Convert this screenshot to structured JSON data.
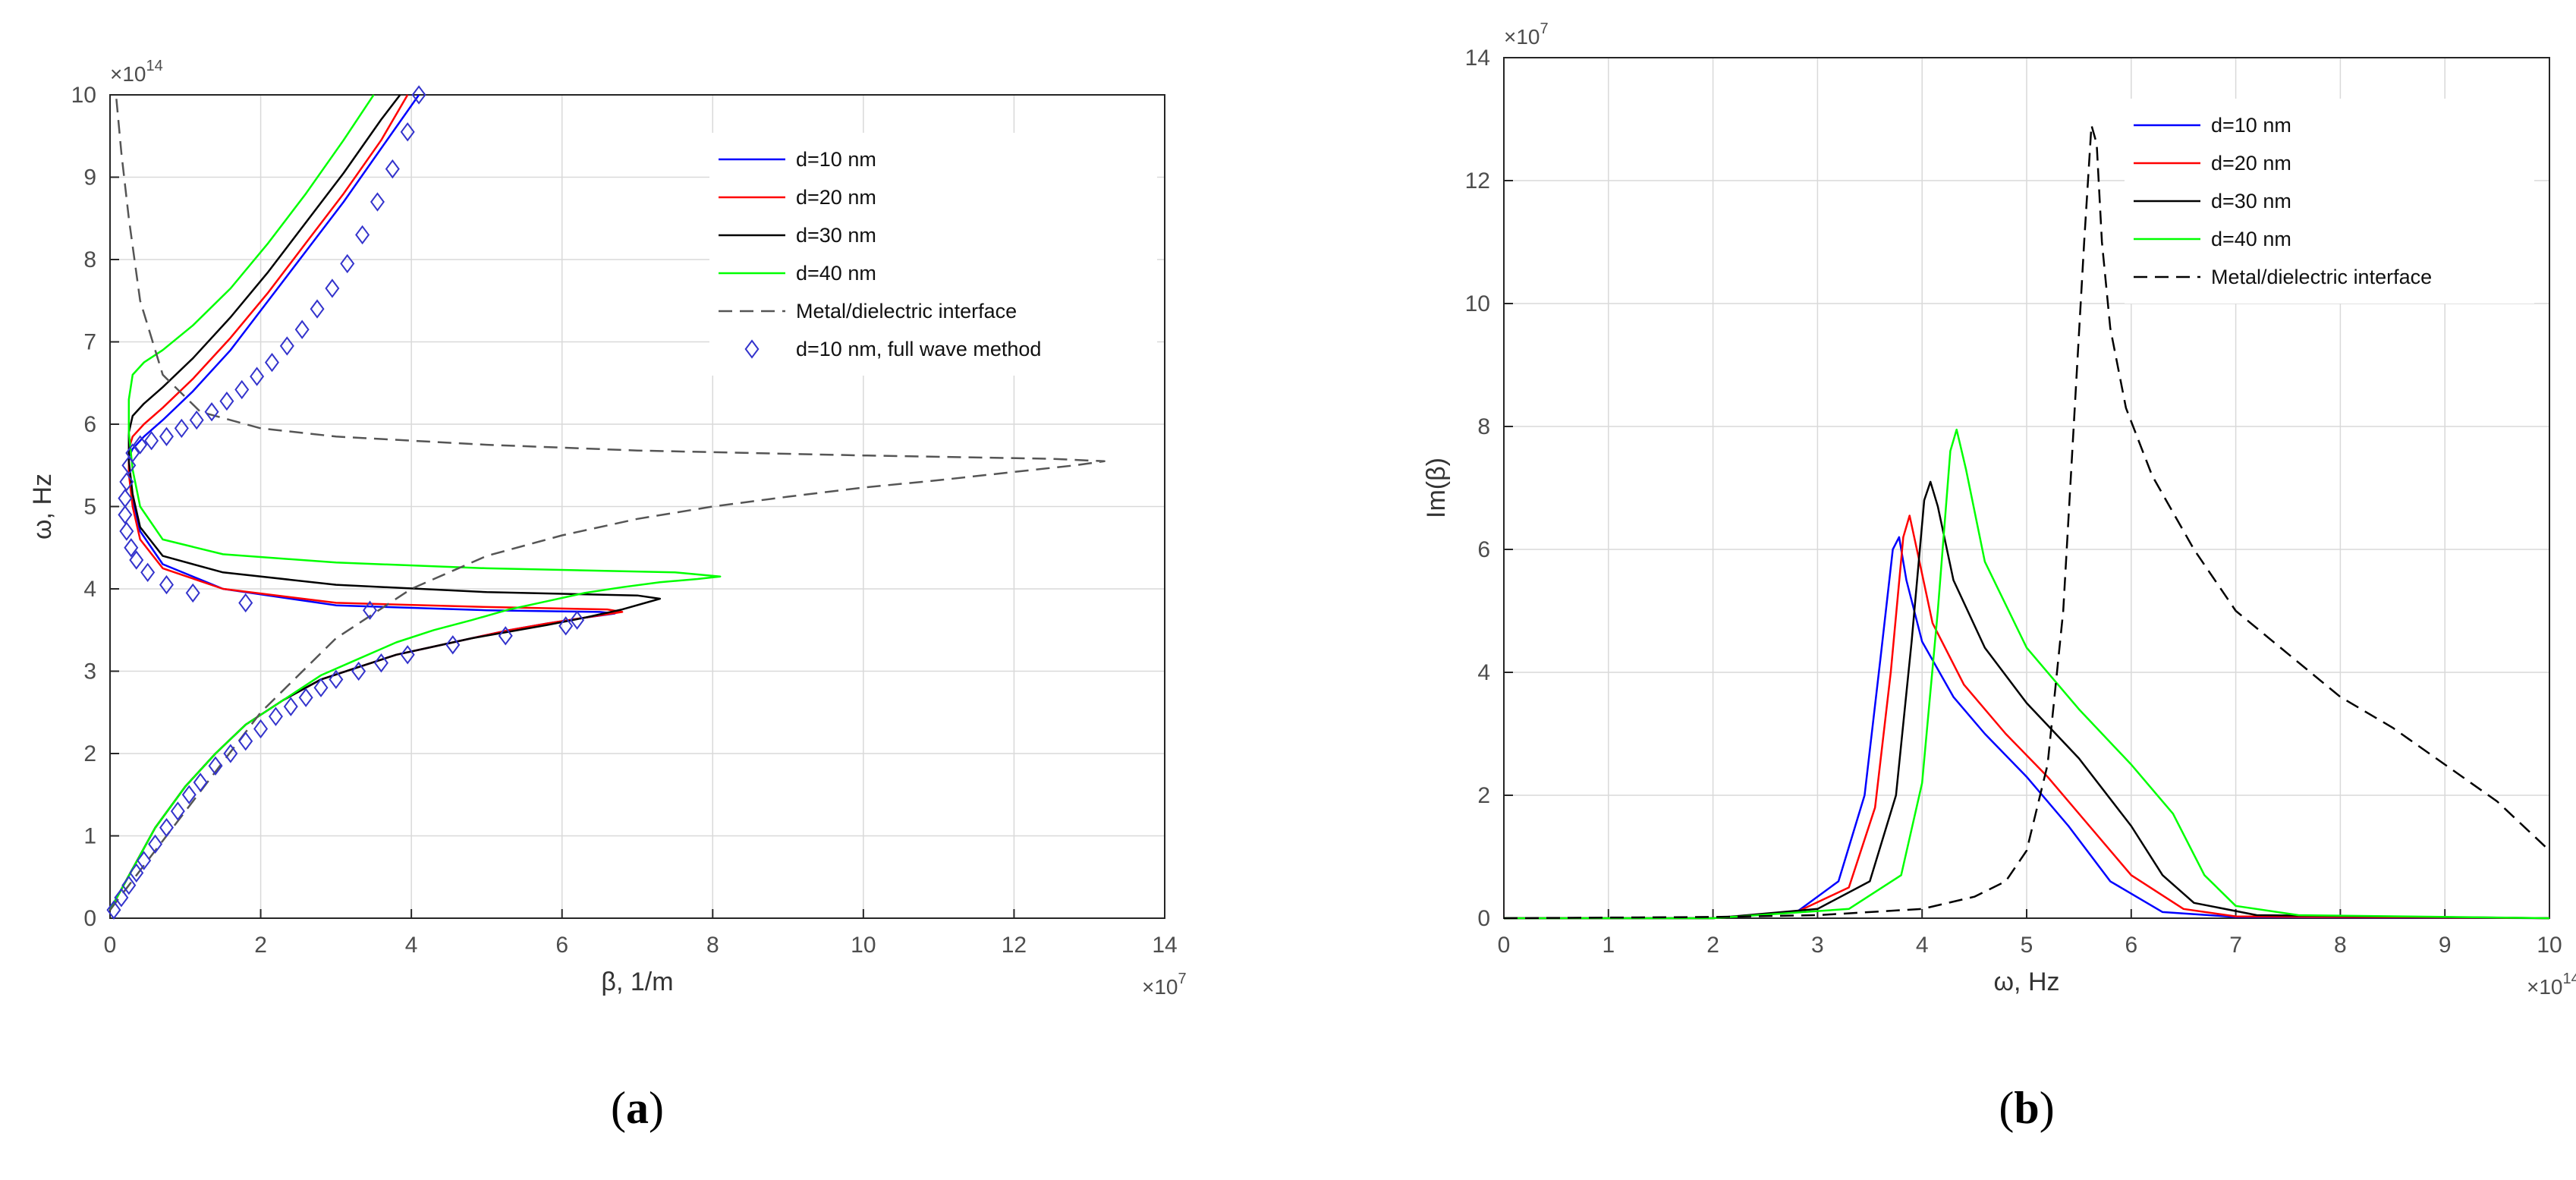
{
  "panels": [
    {
      "id": "a",
      "panel_label_open": "(",
      "panel_label_letter": "a",
      "panel_label_close": ")",
      "x_multiplier": "×10",
      "x_multiplier_exp": "7",
      "y_multiplier": "×10",
      "y_multiplier_exp": "14"
    },
    {
      "id": "b",
      "panel_label_open": "(",
      "panel_label_letter": "b",
      "panel_label_close": ")",
      "x_multiplier": "×10",
      "x_multiplier_exp": "14",
      "y_multiplier": "×10",
      "y_multiplier_exp": "7"
    }
  ],
  "chart_data": [
    {
      "type": "line",
      "xlabel": "β, 1/m",
      "ylabel": "ω, Hz",
      "xlim": [
        0,
        14
      ],
      "ylim": [
        0,
        10
      ],
      "xticks": [
        0,
        2,
        4,
        6,
        8,
        10,
        12,
        14
      ],
      "yticks": [
        0,
        1,
        2,
        3,
        4,
        5,
        6,
        7,
        8,
        9,
        10
      ],
      "grid": true,
      "legend_position": "top-right",
      "colors": {
        "d10": "#0000ff",
        "d20": "#ff0000",
        "d30": "#000000",
        "d40": "#00ff00",
        "interface": "#555555",
        "fullwave": "#3333cc"
      },
      "series": [
        {
          "name": "d=10 nm",
          "color": "#0000ff",
          "style": "solid",
          "x": [
            0,
            0.3,
            0.6,
            1,
            1.4,
            1.8,
            2.3,
            2.8,
            3.3,
            3.8,
            4.3,
            4.8,
            5.3,
            5.8,
            6.3,
            6.7,
            6.5,
            5,
            3,
            1.5,
            0.7,
            0.4,
            0.3,
            0.25,
            0.25,
            0.3,
            0.45,
            0.7,
            1.1,
            1.6,
            2.1,
            2.6,
            3.1,
            3.6,
            4.1
          ],
          "y": [
            0.1,
            0.6,
            1.1,
            1.6,
            2.0,
            2.35,
            2.65,
            2.9,
            3.05,
            3.2,
            3.3,
            3.4,
            3.5,
            3.58,
            3.65,
            3.7,
            3.72,
            3.74,
            3.8,
            4.0,
            4.3,
            4.7,
            5.1,
            5.4,
            5.6,
            5.7,
            5.85,
            6.05,
            6.4,
            6.9,
            7.5,
            8.1,
            8.7,
            9.35,
            10.0
          ]
        },
        {
          "name": "d=20 nm",
          "color": "#ff0000",
          "style": "solid",
          "x": [
            0,
            0.3,
            0.6,
            1,
            1.4,
            1.8,
            2.3,
            2.8,
            3.3,
            3.8,
            4.3,
            4.8,
            5.3,
            5.8,
            6.3,
            6.8,
            6.6,
            5,
            3,
            1.5,
            0.7,
            0.4,
            0.3,
            0.25,
            0.25,
            0.3,
            0.45,
            0.7,
            1.1,
            1.6,
            2.1,
            2.6,
            3.1,
            3.6,
            3.95
          ],
          "y": [
            0.1,
            0.6,
            1.1,
            1.6,
            2.0,
            2.35,
            2.65,
            2.9,
            3.05,
            3.2,
            3.3,
            3.4,
            3.5,
            3.58,
            3.65,
            3.72,
            3.75,
            3.78,
            3.83,
            4.0,
            4.25,
            4.6,
            5.0,
            5.4,
            5.7,
            5.85,
            6.0,
            6.2,
            6.55,
            7.05,
            7.6,
            8.2,
            8.8,
            9.45,
            10.0
          ]
        },
        {
          "name": "d=30 nm",
          "color": "#000000",
          "style": "solid",
          "x": [
            0,
            0.3,
            0.6,
            1,
            1.4,
            1.8,
            2.3,
            2.8,
            3.3,
            3.8,
            4.3,
            4.8,
            5.3,
            5.8,
            6.3,
            6.8,
            7.3,
            7.0,
            5,
            3,
            1.5,
            0.7,
            0.4,
            0.3,
            0.25,
            0.25,
            0.3,
            0.45,
            0.7,
            1.1,
            1.6,
            2.1,
            2.6,
            3.1,
            3.6,
            3.85
          ],
          "y": [
            0.1,
            0.6,
            1.1,
            1.6,
            2.0,
            2.35,
            2.65,
            2.9,
            3.05,
            3.2,
            3.3,
            3.4,
            3.48,
            3.56,
            3.65,
            3.75,
            3.88,
            3.92,
            3.96,
            4.05,
            4.2,
            4.4,
            4.75,
            5.15,
            5.55,
            5.9,
            6.1,
            6.25,
            6.45,
            6.8,
            7.3,
            7.85,
            8.45,
            9.05,
            9.7,
            10.0
          ]
        },
        {
          "name": "d=40 nm",
          "color": "#00ff00",
          "style": "solid",
          "x": [
            0,
            0.3,
            0.6,
            1,
            1.4,
            1.8,
            2.3,
            2.8,
            3.3,
            3.8,
            4.3,
            4.8,
            5.3,
            5.8,
            6.3,
            6.8,
            7.3,
            7.8,
            8.1,
            7.5,
            5,
            3,
            1.5,
            0.7,
            0.4,
            0.3,
            0.25,
            0.25,
            0.3,
            0.45,
            0.7,
            1.1,
            1.6,
            2.1,
            2.6,
            3.1,
            3.5
          ],
          "y": [
            0.1,
            0.6,
            1.1,
            1.6,
            2.0,
            2.35,
            2.65,
            2.95,
            3.15,
            3.35,
            3.5,
            3.62,
            3.75,
            3.85,
            3.95,
            4.02,
            4.08,
            4.12,
            4.15,
            4.2,
            4.25,
            4.32,
            4.42,
            4.6,
            5.0,
            5.45,
            5.9,
            6.3,
            6.6,
            6.75,
            6.9,
            7.2,
            7.65,
            8.2,
            8.8,
            9.45,
            10.0
          ]
        },
        {
          "name": "Metal/dielectric interface",
          "color": "#555555",
          "style": "dashed",
          "x": [
            0,
            0.5,
            1,
            1.5,
            2,
            3,
            4,
            5,
            6,
            7,
            8,
            9,
            10,
            11,
            12,
            12.8,
            13.2,
            12.5,
            10,
            7,
            5,
            3,
            2,
            1.2,
            0.7,
            0.4,
            0.25,
            0.15,
            0.08
          ],
          "y": [
            0.1,
            0.7,
            1.3,
            1.9,
            2.5,
            3.4,
            4.0,
            4.4,
            4.65,
            4.85,
            5.0,
            5.12,
            5.23,
            5.32,
            5.42,
            5.5,
            5.55,
            5.58,
            5.62,
            5.68,
            5.75,
            5.85,
            5.95,
            6.15,
            6.6,
            7.5,
            8.5,
            9.3,
            10.0
          ]
        },
        {
          "name": "d=10 nm, full wave method",
          "color": "#3333cc",
          "style": "marker",
          "x": [
            0.05,
            0.15,
            0.25,
            0.35,
            0.45,
            0.6,
            0.75,
            0.9,
            1.05,
            1.2,
            1.4,
            1.6,
            1.8,
            2.0,
            2.2,
            2.4,
            2.6,
            2.8,
            3.0,
            3.3,
            3.6,
            3.95,
            4.55,
            5.25,
            6.05,
            6.2,
            3.45,
            1.8,
            1.1,
            0.75,
            0.5,
            0.35,
            0.28,
            0.22,
            0.2,
            0.2,
            0.22,
            0.25,
            0.3,
            0.4,
            0.55,
            0.75,
            0.95,
            1.15,
            1.35,
            1.55,
            1.75,
            1.95,
            2.15,
            2.35,
            2.55,
            2.75,
            2.95,
            3.15,
            3.35,
            3.55,
            3.75,
            3.95,
            4.1
          ],
          "y": [
            0.1,
            0.25,
            0.4,
            0.55,
            0.7,
            0.9,
            1.1,
            1.3,
            1.5,
            1.65,
            1.85,
            2.0,
            2.15,
            2.3,
            2.45,
            2.57,
            2.68,
            2.8,
            2.9,
            3.0,
            3.1,
            3.2,
            3.32,
            3.43,
            3.55,
            3.62,
            3.74,
            3.83,
            3.95,
            4.05,
            4.2,
            4.35,
            4.5,
            4.7,
            4.9,
            5.1,
            5.3,
            5.5,
            5.65,
            5.75,
            5.8,
            5.85,
            5.95,
            6.05,
            6.15,
            6.28,
            6.42,
            6.58,
            6.75,
            6.95,
            7.15,
            7.4,
            7.65,
            7.95,
            8.3,
            8.7,
            9.1,
            9.55,
            10.0
          ]
        }
      ]
    },
    {
      "type": "line",
      "xlabel": "ω, Hz",
      "ylabel": "Im(β)",
      "xlim": [
        0,
        10
      ],
      "ylim": [
        0,
        14
      ],
      "xticks": [
        0,
        1,
        2,
        3,
        4,
        5,
        6,
        7,
        8,
        9,
        10
      ],
      "yticks": [
        0,
        2,
        4,
        6,
        8,
        10,
        12,
        14
      ],
      "grid": true,
      "legend_position": "top-right",
      "series": [
        {
          "name": "d=10 nm",
          "color": "#0000ff",
          "style": "solid",
          "x": [
            0,
            2,
            2.8,
            3.2,
            3.45,
            3.6,
            3.72,
            3.78,
            3.85,
            4.0,
            4.3,
            4.6,
            5.0,
            5.4,
            5.8,
            6.3,
            7,
            10
          ],
          "y": [
            0,
            0,
            0.1,
            0.6,
            2.0,
            4.2,
            6.0,
            6.2,
            5.5,
            4.5,
            3.6,
            3.0,
            2.3,
            1.5,
            0.6,
            0.1,
            0.02,
            0
          ]
        },
        {
          "name": "d=20 nm",
          "color": "#ff0000",
          "style": "solid",
          "x": [
            0,
            2,
            2.8,
            3.3,
            3.55,
            3.7,
            3.82,
            3.88,
            3.95,
            4.1,
            4.4,
            4.8,
            5.2,
            5.6,
            6.0,
            6.5,
            7,
            10
          ],
          "y": [
            0,
            0,
            0.1,
            0.5,
            1.8,
            4.0,
            6.2,
            6.55,
            6.0,
            4.8,
            3.8,
            3.0,
            2.3,
            1.5,
            0.7,
            0.15,
            0.03,
            0
          ]
        },
        {
          "name": "d=30 nm",
          "color": "#000000",
          "style": "solid",
          "x": [
            0,
            2,
            3.0,
            3.5,
            3.75,
            3.9,
            4.02,
            4.08,
            4.15,
            4.3,
            4.6,
            5.0,
            5.5,
            6.0,
            6.3,
            6.6,
            7.2,
            10
          ],
          "y": [
            0,
            0,
            0.15,
            0.6,
            2.0,
            4.5,
            6.8,
            7.1,
            6.7,
            5.5,
            4.4,
            3.5,
            2.6,
            1.5,
            0.7,
            0.25,
            0.05,
            0
          ]
        },
        {
          "name": "d=40 nm",
          "color": "#00ff00",
          "style": "solid",
          "x": [
            0,
            2,
            3.3,
            3.8,
            4.0,
            4.15,
            4.27,
            4.33,
            4.42,
            4.6,
            5.0,
            5.5,
            6.0,
            6.4,
            6.7,
            7.0,
            7.6,
            10
          ],
          "y": [
            0,
            0,
            0.15,
            0.7,
            2.2,
            5.0,
            7.6,
            7.95,
            7.3,
            5.8,
            4.4,
            3.4,
            2.5,
            1.7,
            0.7,
            0.2,
            0.05,
            0
          ]
        },
        {
          "name": "Metal/dielectric interface",
          "color": "#000000",
          "style": "dashed",
          "x": [
            0,
            2,
            3,
            4,
            4.5,
            4.8,
            5.0,
            5.2,
            5.35,
            5.45,
            5.55,
            5.62,
            5.67,
            5.72,
            5.8,
            5.95,
            6.2,
            6.6,
            7.0,
            7.5,
            8.0,
            8.5,
            9.0,
            9.5,
            10
          ],
          "y": [
            0,
            0.02,
            0.05,
            0.15,
            0.35,
            0.6,
            1.1,
            2.5,
            5.0,
            8.0,
            11.0,
            12.9,
            12.6,
            11.0,
            9.6,
            8.3,
            7.2,
            6.0,
            5.0,
            4.3,
            3.6,
            3.1,
            2.5,
            1.9,
            1.1
          ]
        }
      ]
    }
  ]
}
